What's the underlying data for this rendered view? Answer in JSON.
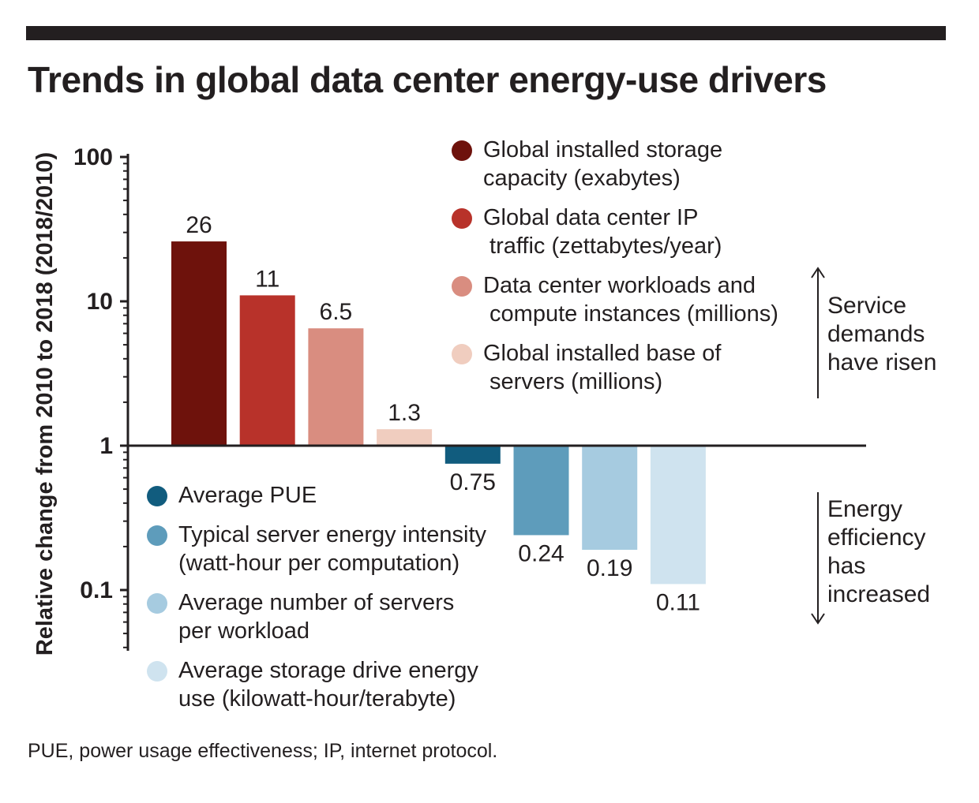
{
  "title": "Trends in global data center energy-use drivers",
  "footnote": "PUE, power usage effectiveness; IP, internet protocol.",
  "chart_data": {
    "type": "bar",
    "title": "Trends in global data center energy-use drivers",
    "xlabel": "",
    "ylabel": "Relative change from 2010 to 2018 (2018/2010)",
    "yscale": "log",
    "ylim": [
      0.04,
      100
    ],
    "baseline": 1,
    "ytick_values": [
      100,
      10,
      1,
      0.1
    ],
    "ytick_labels": [
      "100",
      "10",
      "1",
      "0.1"
    ],
    "grid": false,
    "categories": [
      "Global installed storage capacity (exabytes)",
      "Global data center IP traffic (zettabytes/year)",
      "Data center workloads and compute instances (millions)",
      "Global installed base of servers (millions)",
      "Average PUE",
      "Typical server energy intensity (watt-hour per computation)",
      "Average number of servers per workload",
      "Average storage drive energy use (kilowatt-hour/terabyte)"
    ],
    "values": [
      26,
      11,
      6.5,
      1.3,
      0.75,
      0.24,
      0.19,
      0.11
    ],
    "value_labels": [
      "26",
      "11",
      "6.5",
      "1.3",
      "0.75",
      "0.24",
      "0.19",
      "0.11"
    ],
    "colors": [
      "#6e120c",
      "#b8322a",
      "#d98d80",
      "#f0cdbf",
      "#115c7e",
      "#5e9cbb",
      "#a6cbe0",
      "#cfe3ef"
    ],
    "legend": {
      "top": [
        {
          "label": "Global installed storage\ncapacity (exabytes)",
          "color": "#6e120c"
        },
        {
          "label": "Global data center IP\n traffic (zettabytes/year)",
          "color": "#b8322a"
        },
        {
          "label": "Data center workloads and\n compute instances (millions)",
          "color": "#d98d80"
        },
        {
          "label": "Global installed base of\n servers (millions)",
          "color": "#f0cdbf"
        }
      ],
      "bottom": [
        {
          "label": "Average PUE",
          "color": "#115c7e"
        },
        {
          "label": "Typical server energy intensity\n(watt-hour per computation)",
          "color": "#5e9cbb"
        },
        {
          "label": "Average number of servers\nper workload",
          "color": "#a6cbe0"
        },
        {
          "label": "Average storage drive energy\nuse (kilowatt-hour/terabyte)",
          "color": "#cfe3ef"
        }
      ]
    },
    "annotations": [
      "Service\ndemands\nhave risen",
      "Energy\nefficiency\nhas\nincreased"
    ]
  }
}
